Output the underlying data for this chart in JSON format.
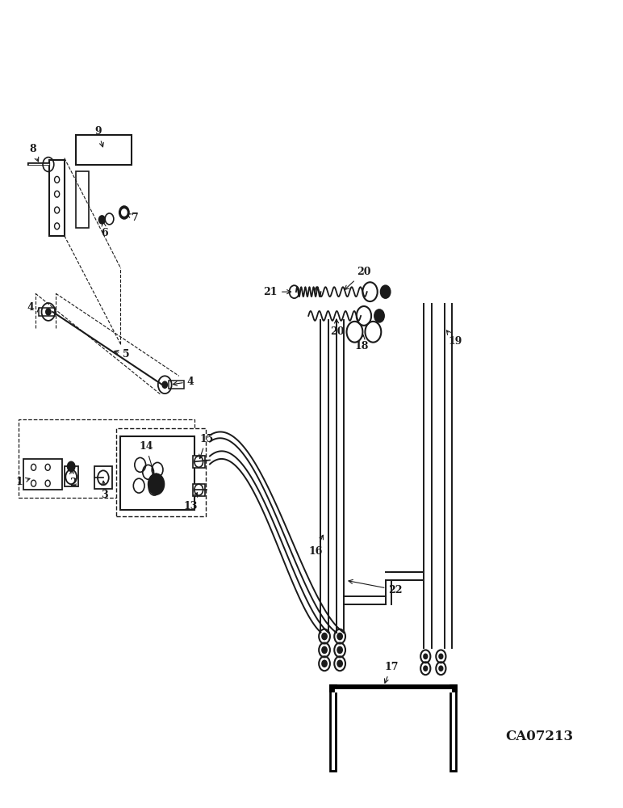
{
  "bg_color": "#ffffff",
  "line_color": "#1a1a1a",
  "thick_line_color": "#000000",
  "label_color": "#1a1a1a",
  "watermark": "CA07213"
}
